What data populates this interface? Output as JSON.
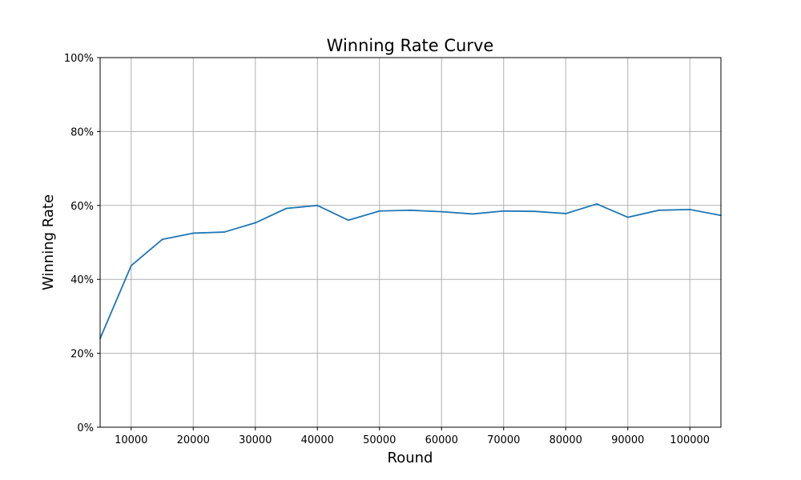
{
  "chart_data": {
    "type": "line",
    "title": "Winning Rate Curve",
    "xlabel": "Round",
    "ylabel": "Winning Rate",
    "xlim": [
      5000,
      105000
    ],
    "ylim": [
      0,
      1
    ],
    "x_ticks": [
      10000,
      20000,
      30000,
      40000,
      50000,
      60000,
      70000,
      80000,
      90000,
      100000
    ],
    "x_tick_labels": [
      "10000",
      "20000",
      "30000",
      "40000",
      "50000",
      "60000",
      "70000",
      "80000",
      "90000",
      "100000"
    ],
    "y_ticks": [
      0,
      0.2,
      0.4,
      0.6,
      0.8,
      1.0
    ],
    "y_tick_labels": [
      "0%",
      "20%",
      "40%",
      "60%",
      "80%",
      "100%"
    ],
    "grid": true,
    "legend": false,
    "series": [
      {
        "color": "#1f77b4",
        "x": [
          5000,
          10000,
          15000,
          20000,
          25000,
          30000,
          35000,
          40000,
          45000,
          50000,
          55000,
          60000,
          65000,
          70000,
          75000,
          80000,
          85000,
          90000,
          95000,
          100000,
          105000
        ],
        "y": [
          0.24,
          0.437,
          0.508,
          0.525,
          0.528,
          0.553,
          0.592,
          0.6,
          0.56,
          0.585,
          0.587,
          0.583,
          0.577,
          0.585,
          0.584,
          0.578,
          0.604,
          0.568,
          0.587,
          0.589,
          0.573
        ]
      }
    ]
  }
}
